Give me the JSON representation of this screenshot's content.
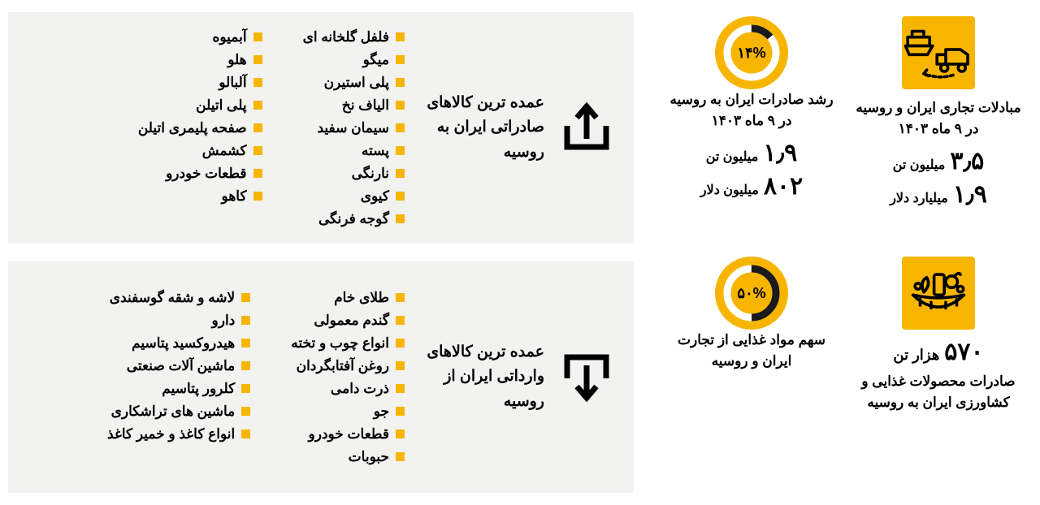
{
  "colors": {
    "accent": "#f7b500",
    "panel_bg": "#f2f2f1",
    "text": "#000000",
    "bg": "#ffffff",
    "donut_dark": "#1a1a1a"
  },
  "stats": {
    "trade": {
      "title": "مبادلات تجاری ایران و روسیه در ۹ ماه ۱۴۰۳",
      "v1": "۳٫۵",
      "u1": "میلیون تن",
      "v2": "۱٫۹",
      "u2": "میلیارد دلار"
    },
    "export_growth": {
      "title": "رشد صادرات ایران به روسیه در ۹ ماه ۱۴۰۳",
      "pct": "۱۴%",
      "pct_numeric": 14,
      "v1": "۱٫۹",
      "u1": "میلیون تن",
      "v2": "۸۰۲",
      "u2": "میلیون دلار"
    },
    "food_export": {
      "big": "۵۷۰",
      "big_unit": "هزار تن",
      "title": "صادرات محصولات غذایی و کشاورزی ایران به روسیه"
    },
    "food_share": {
      "pct": "۵۰%",
      "pct_numeric": 50,
      "title": "سهم مواد غذایی از تجارت ایران و روسیه"
    }
  },
  "exports": {
    "head": "عمده ترین کالاهای صادراتی ایران به روسیه",
    "col1": [
      "فلفل گلخانه ای",
      "میگو",
      "پلی استیرن",
      "الیاف نخ",
      "سیمان سفید",
      "پسته",
      "نارنگی",
      "کیوی",
      "گوجه فرنگی"
    ],
    "col2": [
      "آبمیوه",
      "هلو",
      "آلبالو",
      "پلی اتیلن",
      "صفحه پلیمری اتیلن",
      "کشمش",
      "قطعات خودرو",
      "کاهو"
    ]
  },
  "imports": {
    "head": "عمده ترین کالاهای وارداتی ایران از روسیه",
    "col1": [
      "طلای خام",
      "گندم معمولی",
      "انواع چوب و تخته",
      "روغن آفتابگردان",
      "ذرت دامی",
      "جو",
      "قطعات خودرو",
      "حبوبات"
    ],
    "col2": [
      "لاشه و شقه گوسفندی",
      "دارو",
      "هیدروکسید پتاسیم",
      "ماشین آلات صنعتی",
      "کلرور پتاسیم",
      "ماشین های تراشکاری",
      "انواع کاغذ و خمیر کاغذ"
    ]
  }
}
